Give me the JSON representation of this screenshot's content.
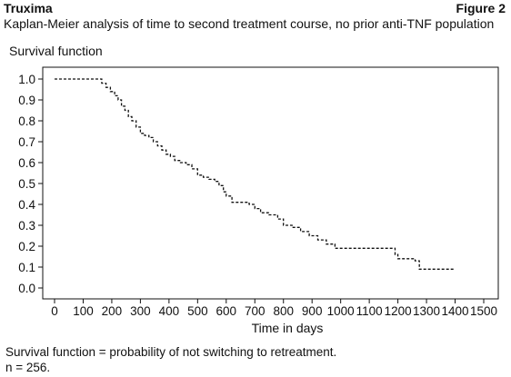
{
  "header": {
    "brand": "Truxima",
    "figure_label": "Figure 2",
    "subtitle": "Kaplan-Meier analysis of time to second treatment course, no prior anti-TNF population"
  },
  "footnotes": [
    "Survival function = probability of not switching to retreatment.",
    "n = 256."
  ],
  "chart_data": {
    "type": "line",
    "title": "Kaplan-Meier analysis of time to second treatment course, no prior anti-TNF population",
    "xlabel": "Time in days",
    "ylabel": "Survival function",
    "xlim": [
      0,
      1500
    ],
    "ylim": [
      0.0,
      1.0
    ],
    "xticks": [
      0,
      100,
      200,
      300,
      400,
      500,
      600,
      700,
      800,
      900,
      1000,
      1100,
      1200,
      1300,
      1400,
      1500
    ],
    "yticks": [
      0.0,
      0.1,
      0.2,
      0.3,
      0.4,
      0.5,
      0.6,
      0.7,
      0.8,
      0.9,
      1.0
    ],
    "ytick_labels": [
      "0.0",
      "0.1",
      "0.2",
      "0.3",
      "0.4",
      "0.5",
      "0.6",
      "0.7",
      "0.8",
      "0.9",
      "1.0"
    ],
    "line_style": "dashed",
    "line_color": "#111111",
    "grid": false,
    "series": [
      {
        "step": true,
        "x": [
          0,
          165,
          180,
          195,
          210,
          222,
          234,
          246,
          258,
          270,
          285,
          300,
          315,
          330,
          345,
          360,
          375,
          390,
          405,
          420,
          440,
          460,
          480,
          500,
          520,
          540,
          560,
          575,
          590,
          600,
          620,
          650,
          680,
          700,
          720,
          750,
          780,
          800,
          830,
          860,
          890,
          920,
          950,
          980,
          1020,
          1060,
          1090,
          1130,
          1170,
          1190,
          1200,
          1230,
          1260,
          1275,
          1300,
          1330,
          1370,
          1400
        ],
        "y": [
          1.0,
          0.98,
          0.96,
          0.94,
          0.92,
          0.9,
          0.87,
          0.85,
          0.82,
          0.8,
          0.77,
          0.74,
          0.73,
          0.72,
          0.7,
          0.68,
          0.66,
          0.64,
          0.63,
          0.61,
          0.6,
          0.59,
          0.57,
          0.54,
          0.53,
          0.52,
          0.51,
          0.49,
          0.46,
          0.44,
          0.41,
          0.41,
          0.4,
          0.38,
          0.36,
          0.35,
          0.33,
          0.3,
          0.29,
          0.27,
          0.25,
          0.23,
          0.21,
          0.19,
          0.19,
          0.19,
          0.19,
          0.19,
          0.19,
          0.16,
          0.14,
          0.14,
          0.13,
          0.09,
          0.09,
          0.09,
          0.09,
          0.09
        ]
      }
    ]
  }
}
